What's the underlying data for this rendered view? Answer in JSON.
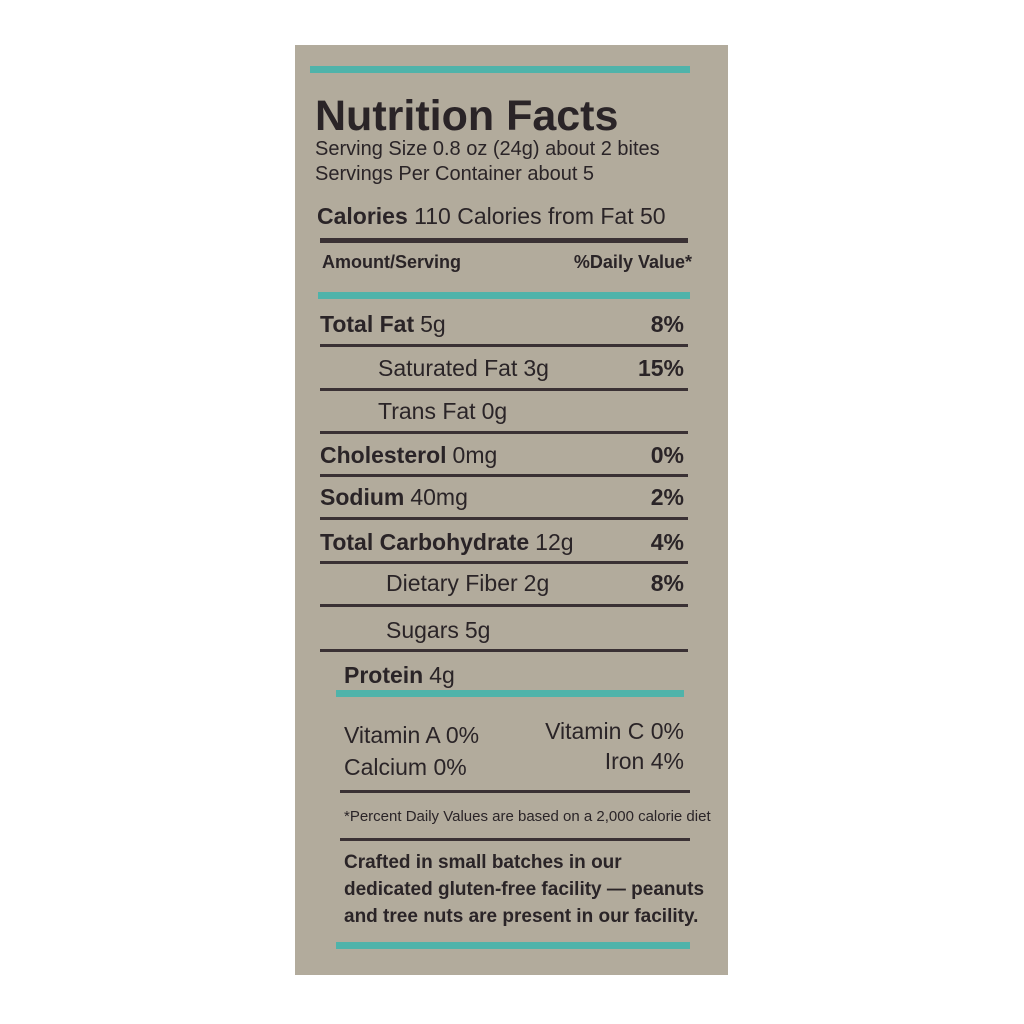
{
  "label": {
    "title": "Nutrition Facts",
    "serving_size": "Serving Size 0.8 oz (24g) about 2 bites",
    "servings": "Servings Per Container about 5",
    "calories": {
      "label": "Calories",
      "value": "110",
      "from_fat": "Calories from Fat 50"
    },
    "header": {
      "amount": "Amount/Serving",
      "daily_value": "%Daily Value*"
    },
    "rows": [
      {
        "name": "Total Fat",
        "amount": "5g",
        "dv": "8%"
      },
      {
        "name": "Saturated Fat",
        "amount": "3g",
        "dv": "15%"
      },
      {
        "name": "Trans Fat",
        "amount": "0g"
      },
      {
        "name": "Cholesterol",
        "amount": "0mg",
        "dv": "0%"
      },
      {
        "name": "Sodium",
        "amount": "40mg",
        "dv": "2%"
      },
      {
        "name": "Total Carbohydrate",
        "amount": "12g",
        "dv": "4%"
      },
      {
        "name": "Dietary Fiber",
        "amount": "2g",
        "dv": "8%"
      },
      {
        "name": "Sugars",
        "amount": "5g"
      },
      {
        "name": "Protein",
        "amount": "4g"
      }
    ],
    "vitamins": [
      {
        "name": "Vitamin A",
        "dv": "0%"
      },
      {
        "name": "Vitamin C",
        "dv": "0%"
      },
      {
        "name": "Calcium",
        "dv": "0%"
      },
      {
        "name": "Iron",
        "dv": "4%"
      }
    ],
    "footnote": "*Percent Daily Values are based on a 2,000 calorie diet",
    "statement": [
      "Crafted in small batches in our",
      "dedicated gluten-free facility — peanuts",
      "and tree nuts are present in our facility."
    ]
  }
}
